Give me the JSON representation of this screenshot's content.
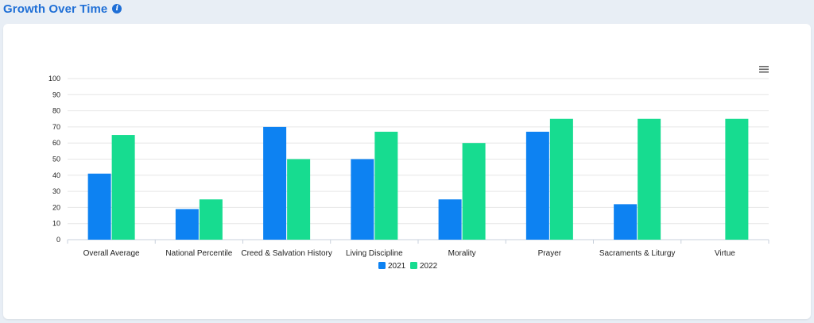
{
  "header": {
    "title": "Growth Over Time",
    "info_icon": "info-icon"
  },
  "menu": {
    "icon": "hamburger-menu-icon"
  },
  "colors": {
    "series_2021": "#0d82f2",
    "series_2022": "#17dc90",
    "title": "#1f6fd6"
  },
  "chart_data": {
    "type": "bar",
    "title": "",
    "xlabel": "",
    "ylabel": "",
    "ylim": [
      0,
      100
    ],
    "yticks": [
      0,
      10,
      20,
      30,
      40,
      50,
      60,
      70,
      80,
      90,
      100
    ],
    "grid": true,
    "legend_position": "bottom",
    "categories": [
      "Overall Average",
      "National Percentile",
      "Creed & Salvation History",
      "Living Discipline",
      "Morality",
      "Prayer",
      "Sacraments & Liturgy",
      "Virtue"
    ],
    "series": [
      {
        "name": "2021",
        "color": "#0d82f2",
        "values": [
          41,
          19,
          70,
          50,
          25,
          67,
          22,
          null
        ]
      },
      {
        "name": "2022",
        "color": "#17dc90",
        "values": [
          65,
          25,
          50,
          67,
          60,
          75,
          75,
          75
        ]
      }
    ]
  }
}
